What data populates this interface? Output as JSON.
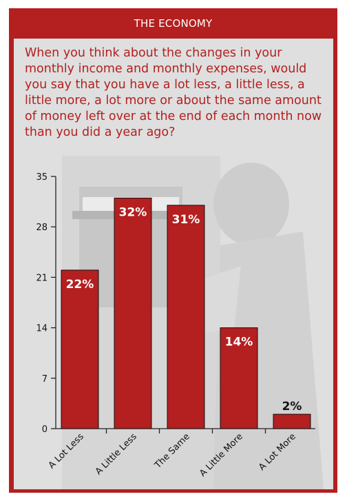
{
  "header": {
    "title": "THE ECONOMY"
  },
  "question": "When you think about the changes in your monthly income and monthly expenses, would you say that you have a lot less, a little less, a little more, a lot more or about the same amount of money left over at the end of each month now than you did a year ago?",
  "colors": {
    "accent": "#b41f1f",
    "panel": "#d6d6d6"
  },
  "chart_data": {
    "type": "bar",
    "categories": [
      "A Lot Less",
      "A Little Less",
      "The Same",
      "A Little More",
      "A Lot More"
    ],
    "values": [
      22,
      32,
      31,
      14,
      2
    ],
    "value_labels": [
      "22%",
      "32%",
      "31%",
      "14%",
      "2%"
    ],
    "title": "",
    "xlabel": "",
    "ylabel": "",
    "ylim": [
      0,
      35
    ],
    "yticks": [
      "0",
      "7",
      "14",
      "21",
      "28",
      "35"
    ],
    "grid": false,
    "legend": "none",
    "bar_color": "#b41f1f"
  }
}
